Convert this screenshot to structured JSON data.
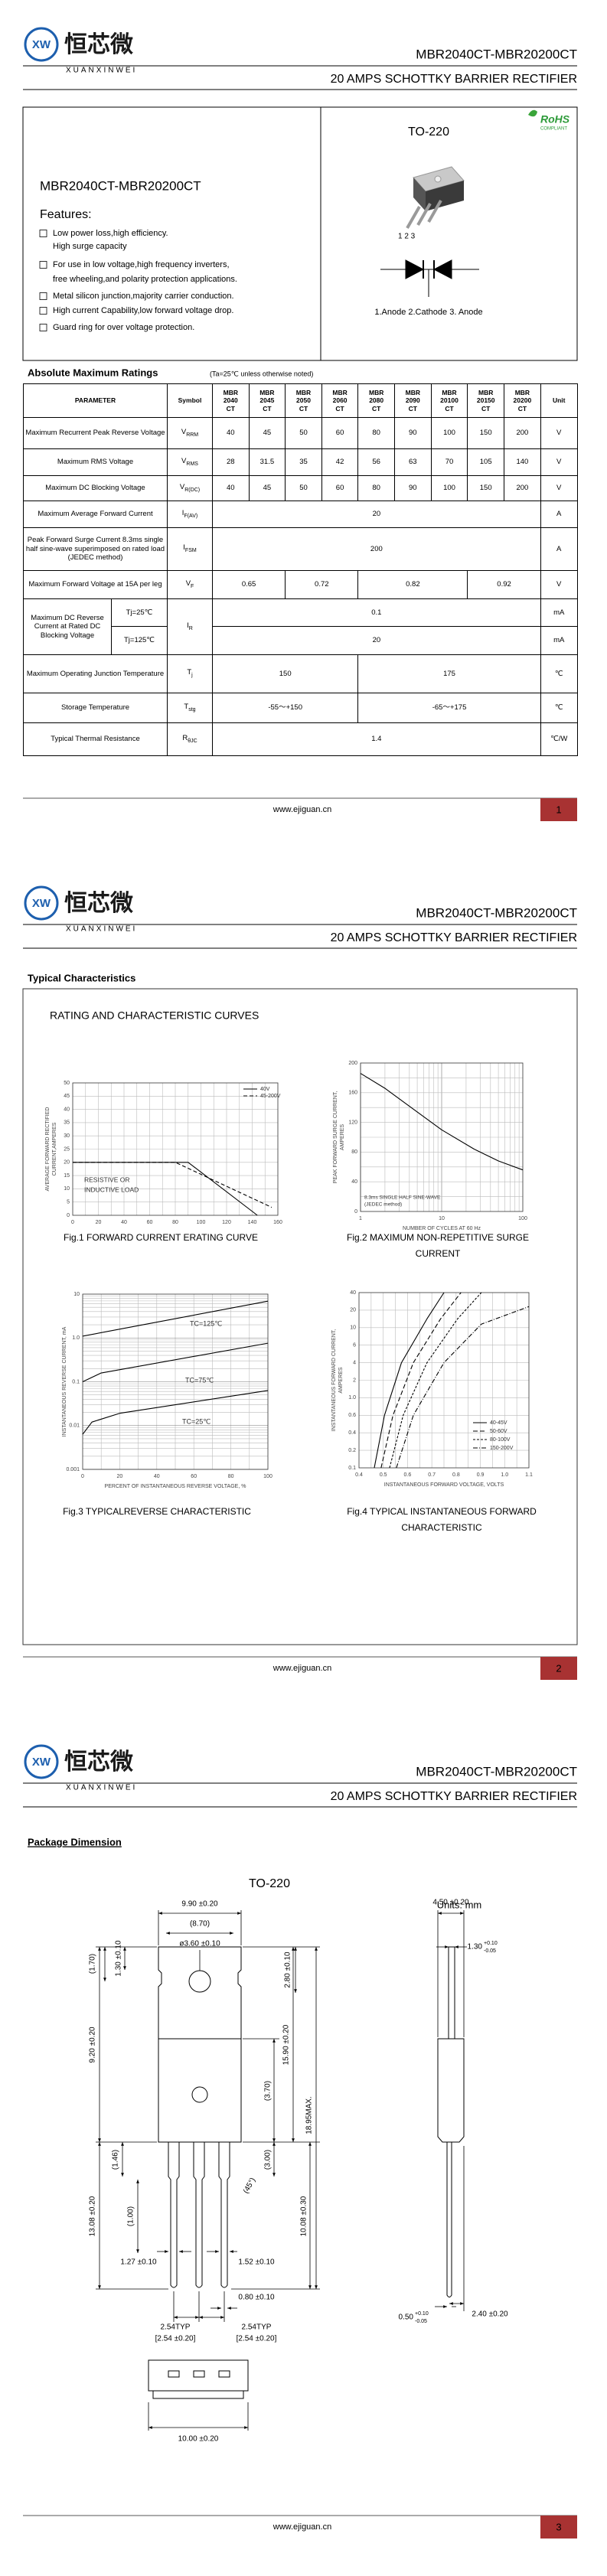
{
  "header": {
    "logo": "XW",
    "brand_cn": "恒芯微",
    "brand_en": "XUANXINWEI",
    "part": "MBR2040CT-MBR20200CT",
    "subtitle": "20 AMPS SCHOTTKY BARRIER RECTIFIER"
  },
  "footer": {
    "url": "www.ejiguan.cn"
  },
  "page_numbers": [
    1,
    2,
    3
  ],
  "overview": {
    "part": "MBR2040CT-MBR20200CT",
    "features_title": "Features:",
    "features": [
      [
        "Low power loss,high efficiency.",
        "High surge capacity"
      ],
      [
        "For use in low voltage,high frequency inverters,",
        "free wheeling,and polarity protection applications."
      ],
      [
        "Metal silicon junction,majority carrier conduction."
      ],
      [
        "High current Capability,low forward voltage drop."
      ],
      [
        "Guard ring for over voltage protection."
      ]
    ],
    "package": "TO-220",
    "rohs": "RoHS",
    "rohs_note": "COMPLIANT",
    "pins": "1 2 3",
    "pin_labels": "1.Anode  2.Cathode  3. Anode"
  },
  "ratings": {
    "title": "Absolute Maximum Ratings",
    "note": "(Ta=25℃ unless otherwise noted)",
    "headers": {
      "parameter": "PARAMETER",
      "symbol": "Symbol",
      "unit": "Unit",
      "models": [
        [
          "MBR",
          "2040",
          "CT"
        ],
        [
          "MBR",
          "2045",
          "CT"
        ],
        [
          "MBR",
          "2050",
          "CT"
        ],
        [
          "MBR",
          "2060",
          "CT"
        ],
        [
          "MBR",
          "2080",
          "CT"
        ],
        [
          "MBR",
          "2090",
          "CT"
        ],
        [
          "MBR",
          "20100",
          "CT"
        ],
        [
          "MBR",
          "20150",
          "CT"
        ],
        [
          "MBR",
          "20200",
          "CT"
        ]
      ]
    },
    "rows": [
      {
        "parameter": "Maximum Recurrent Peak Reverse Voltage",
        "symbol": {
          "base": "V",
          "sub": "RRM"
        },
        "values": [
          40,
          45,
          50,
          60,
          80,
          90,
          100,
          150,
          200
        ],
        "unit": "V"
      },
      {
        "parameter": "Maximum RMS Voltage",
        "symbol": {
          "base": "V",
          "sub": "RMS"
        },
        "values": [
          28,
          31.5,
          35,
          42,
          56,
          63,
          70,
          105,
          140
        ],
        "unit": "V"
      },
      {
        "parameter": "Maximum DC Blocking Voltage",
        "symbol": {
          "base": "V",
          "sub": "R(DC)"
        },
        "values": [
          40,
          45,
          50,
          60,
          80,
          90,
          100,
          150,
          200
        ],
        "unit": "V"
      },
      {
        "parameter": "Maximum Average Forward Current",
        "symbol": {
          "base": "I",
          "sub": "F(AV)"
        },
        "values": [
          20
        ],
        "unit": "A"
      },
      {
        "parameter": "Peak Forward Surge Current 8.3ms single half sine-wave superimposed on rated load (JEDEC method)",
        "symbol": {
          "base": "I",
          "sub": "FSM"
        },
        "values": [
          200
        ],
        "unit": "A"
      },
      {
        "parameter": "Maximum Forward Voltage at 15A per leg",
        "symbol": {
          "base": "V",
          "sub": "F"
        },
        "values": [
          0.65,
          0.72,
          0.82,
          0.92
        ],
        "unit": "V"
      },
      {
        "parameter": "Maximum DC Reverse Current at Rated DC Blocking Voltage",
        "symbol": {
          "base": "I",
          "sub": "R"
        },
        "conditions": [
          "Tj=25℃",
          "Tj=125℃"
        ],
        "values": [
          0.1,
          20
        ],
        "unit": "mA"
      },
      {
        "parameter": "Maximum Operating Junction Temperature",
        "symbol": {
          "base": "T",
          "sub": "j"
        },
        "values": [
          150,
          175
        ],
        "unit": "℃"
      },
      {
        "parameter": "Storage Temperature",
        "symbol": {
          "base": "T",
          "sub": "stg"
        },
        "values": [
          "-55～+150",
          "-65～+175"
        ],
        "unit": "℃"
      },
      {
        "parameter": "Typical Thermal Resistance",
        "symbol": {
          "base": "R",
          "sub": "θJC"
        },
        "values": [
          1.4
        ],
        "unit": "℃/W"
      }
    ]
  },
  "typical": {
    "title": "Typical Characteristics",
    "subtitle": "RATING AND CHARACTERISTIC CURVES",
    "figures": [
      {
        "ylabel": [
          "AVERAGE FORWARD RECTIFIED",
          "CURRENT,AMPERES"
        ],
        "yticks": [
          0,
          5,
          10,
          15,
          20,
          25,
          30,
          35,
          40,
          45,
          50
        ],
        "xticks": [
          0,
          20,
          40,
          60,
          80,
          100,
          120,
          140,
          160
        ],
        "legend": [
          "40V",
          "45-200V"
        ],
        "notes": [
          "RESISTIVE OR",
          "INDUCTIVE LOAD"
        ],
        "caption": [
          "Fig.1 FORWARD CURRENT ERATING CURVE"
        ]
      },
      {
        "ylabel": [
          "PEAK FORWARD SURGE CURRENT,",
          "AMPERES"
        ],
        "yticks": [
          0,
          40,
          80,
          120,
          160,
          200
        ],
        "xticks": [
          1,
          10,
          100
        ],
        "xlabel": "NUMBER OF CYCLES AT 60 Hz",
        "notes": [
          "8.3ms SINGLE HALF SINE-WAVE",
          "(JEDEC method)"
        ],
        "caption": [
          "Fig.2 MAXIMUM NON-REPETITIVE SURGE",
          "CURRENT"
        ]
      },
      {
        "ylabel": [
          "INSTANTANEOUS REVERSE CURRENT, mA"
        ],
        "yticks": [
          0.001,
          0.01,
          0.1,
          "1.0",
          10
        ],
        "xticks": [
          0,
          20,
          40,
          60,
          80,
          100
        ],
        "xlabel": "PERCENT OF INSTANTANEOUS REVERSE VOLTAGE, %",
        "notes": [
          "TC=125℃",
          "TC=75℃",
          "TC=25℃"
        ],
        "caption": [
          "Fig.3 TYPICALREVERSE CHARACTERISTIC"
        ]
      },
      {
        "ylabel": [
          "INSTANTANEOUS FORWARD CURRENT,",
          "AMPERES"
        ],
        "yticks": [
          0.1,
          0.2,
          0.4,
          0.6,
          "1.0",
          2,
          4,
          6,
          10,
          20,
          40
        ],
        "xticks": [
          0.4,
          0.5,
          0.6,
          0.7,
          0.8,
          0.9,
          "1.0",
          1.1
        ],
        "xlabel": "INSTANTANEOUS FORWARD VOLTAGE, VOLTS",
        "legend": [
          "40-45V",
          "50-60V",
          "80-100V",
          "150-200V"
        ],
        "caption": [
          "Fig.4 TYPICAL INSTANTANEOUS FORWARD",
          "CHARACTERISTIC"
        ]
      }
    ]
  },
  "package": {
    "title": "Package Dimension",
    "name": "TO-220",
    "units": "Units: mm",
    "dims": [
      "9.90 ±0.20",
      "(8.70)",
      "ø3.60 ±0.10",
      "2.80 ±0.10",
      "(1.70)",
      "1.30 ±0.10",
      "9.20 ±0.20",
      "(1.46)",
      "(3.70)",
      "15.90 ±0.20",
      "18.95MAX.",
      "(3.00)",
      "(45°)",
      "(1.00)",
      "1.27 ±0.10",
      "1.52 ±0.10",
      "13.08 ±0.20",
      "10.08 ±0.30",
      "0.80 ±0.10",
      "2.54TYP",
      "[2.54 ±0.20]",
      "2.54TYP",
      "[2.54 ±0.20]",
      "10.00 ±0.20",
      "4.50 ±0.20",
      {
        "nominal": "1.30",
        "upper": "+0.10",
        "lower": "-0.05"
      },
      {
        "nominal": "0.50",
        "upper": "+0.10",
        "lower": "-0.05"
      },
      "2.40 ±0.20"
    ]
  }
}
